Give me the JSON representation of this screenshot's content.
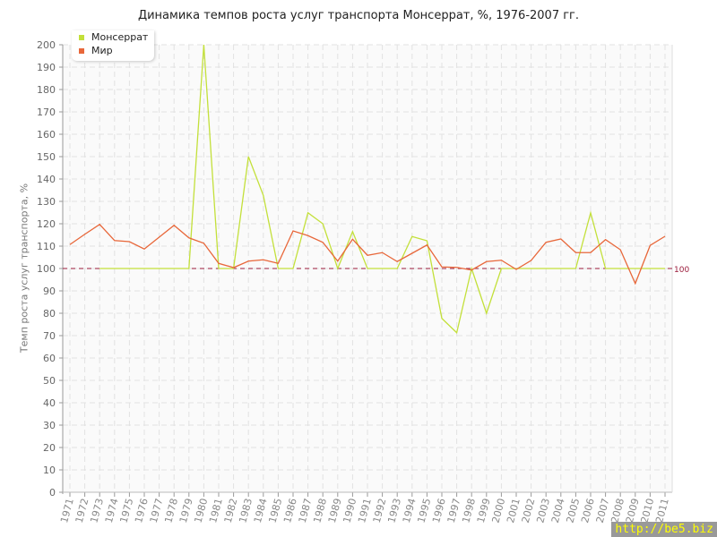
{
  "chart_data": {
    "type": "line",
    "title": "Динамика темпов роста услуг транспорта Монсеррат, %, 1976-2007 гг.",
    "ylabel": "Темп роста услуг транспорта, %",
    "xlabel": "",
    "ylim": [
      0,
      200
    ],
    "yticks": [
      0,
      10,
      20,
      30,
      40,
      50,
      60,
      70,
      80,
      90,
      100,
      110,
      120,
      130,
      140,
      150,
      160,
      170,
      180,
      190,
      200
    ],
    "x": [
      1971,
      1972,
      1973,
      1974,
      1975,
      1976,
      1977,
      1978,
      1979,
      1980,
      1981,
      1982,
      1983,
      1984,
      1985,
      1986,
      1987,
      1988,
      1989,
      1990,
      1991,
      1992,
      1993,
      1994,
      1995,
      1996,
      1997,
      1998,
      1999,
      2000,
      2001,
      2002,
      2003,
      2004,
      2005,
      2006,
      2007,
      2008,
      2009,
      2010,
      2011
    ],
    "grid": true,
    "legend_position": "top-left",
    "reference_line": {
      "value": 100,
      "label": "100",
      "color": "#9b1c3c"
    },
    "series": [
      {
        "name": "Монсеррат",
        "color": "#c3e03a",
        "values": [
          null,
          null,
          100,
          100,
          100,
          100,
          100,
          100,
          100,
          200,
          100,
          100,
          150,
          132.7,
          100,
          100,
          124.9,
          120,
          100,
          116.5,
          100,
          100,
          100,
          114.3,
          112.4,
          77.7,
          71.3,
          100,
          80,
          100,
          100,
          100,
          100,
          100,
          100,
          124.9,
          100,
          100,
          100,
          100,
          100
        ]
      },
      {
        "name": "Мир",
        "color": "#e8673a",
        "values": [
          110.7,
          115.3,
          119.7,
          112.5,
          112,
          108.7,
          114,
          119.3,
          113.7,
          111.3,
          102.3,
          100.4,
          103.3,
          103.9,
          102.3,
          116.8,
          114.7,
          111.7,
          103.3,
          113.1,
          105.9,
          107.1,
          103.1,
          106.8,
          110.5,
          100.7,
          100.5,
          99.3,
          103.1,
          103.7,
          99.6,
          103.6,
          111.7,
          113.2,
          107.1,
          107.1,
          112.9,
          108.4,
          93.3,
          110.3,
          114.4
        ]
      }
    ]
  },
  "watermark": "http://be5.biz"
}
